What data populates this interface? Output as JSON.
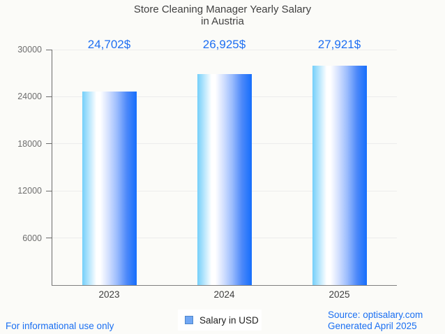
{
  "chart_data": {
    "type": "bar",
    "title": "Store Cleaning Manager Yearly Salary in Austria",
    "title_lines": [
      "Store Cleaning Manager Yearly Salary",
      "in Austria"
    ],
    "categories": [
      "2023",
      "2024",
      "2025"
    ],
    "series": [
      {
        "name": "Salary in USD",
        "values": [
          24702,
          26925,
          27921
        ]
      }
    ],
    "value_labels": [
      "24,702$",
      "26,925$",
      "27,921$"
    ],
    "xlabel": "",
    "ylabel": "",
    "ylim": [
      0,
      30000
    ],
    "yticks": [
      6000,
      12000,
      18000,
      24000,
      30000
    ],
    "ytick_labels": [
      "6000",
      "12000",
      "18000",
      "24000",
      "30000"
    ],
    "grid": true,
    "legend_position": "bottom-center",
    "bar_gradient": [
      {
        "color": "#74cffa",
        "pos": 0
      },
      {
        "color": "#ffffff",
        "pos": 26
      },
      {
        "color": "#ffffff",
        "pos": 33
      },
      {
        "color": "#d3e0fe",
        "pos": 48
      },
      {
        "color": "#9bbcfd",
        "pos": 64
      },
      {
        "color": "#4c88f9",
        "pos": 82
      },
      {
        "color": "#156efc",
        "pos": 100
      }
    ]
  },
  "legend": {
    "label": "Salary in USD",
    "marker_color": "#71a7f4",
    "marker_border": "#4f86ca"
  },
  "footer": {
    "disclaimer": "For informational use only",
    "source_line1": "Source: optisalary.com",
    "source_line2": "Generated April 2025"
  },
  "colors": {
    "background": "#fbfbf8",
    "title_gray": "#414141",
    "value_blue": "#1e6ff2",
    "footer_blue": "#1a6ff2",
    "axis_gray": "#6b6b6b",
    "tick_label_gray": "#6e6e6e",
    "gridline_gray": "#ececec"
  }
}
